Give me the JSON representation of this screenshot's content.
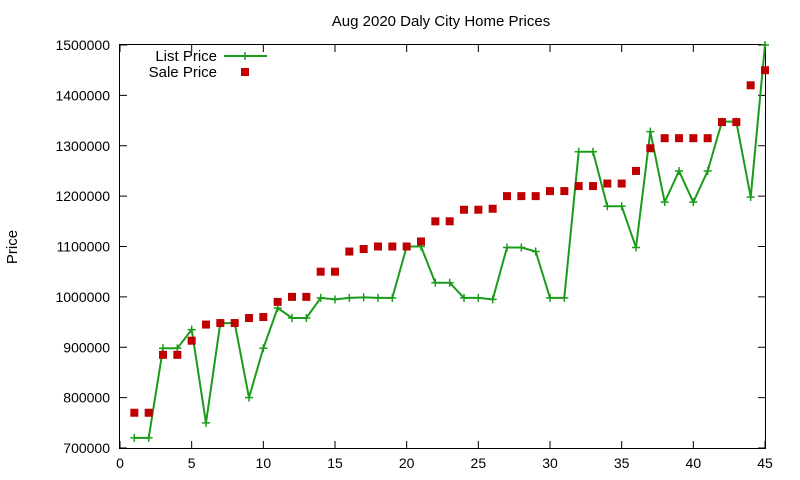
{
  "chart_data": {
    "type": "line",
    "title": "Aug 2020 Daly City Home Prices",
    "xlabel": "",
    "ylabel": "Price",
    "xlim": [
      0,
      45
    ],
    "ylim": [
      700000,
      1500000
    ],
    "xticks": [
      0,
      5,
      10,
      15,
      20,
      25,
      30,
      35,
      40,
      45
    ],
    "yticks": [
      700000,
      800000,
      900000,
      1000000,
      1100000,
      1200000,
      1300000,
      1400000,
      1500000
    ],
    "grid": false,
    "legend_position": "top-left",
    "series": [
      {
        "name": "List Price",
        "style": "linespoints",
        "marker": "plus",
        "color": "#1a9c1a",
        "x": [
          1,
          2,
          3,
          4,
          5,
          6,
          7,
          8,
          9,
          10,
          11,
          12,
          13,
          14,
          15,
          16,
          17,
          18,
          19,
          20,
          21,
          22,
          23,
          24,
          25,
          26,
          27,
          28,
          29,
          30,
          31,
          32,
          33,
          34,
          35,
          36,
          37,
          38,
          39,
          40,
          41,
          42,
          43,
          44,
          45
        ],
        "values": [
          720000,
          720000,
          898000,
          898000,
          935000,
          750000,
          948000,
          948000,
          800000,
          898000,
          978000,
          958000,
          958000,
          998000,
          995000,
          998000,
          999000,
          998000,
          998000,
          1100000,
          1100000,
          1028000,
          1028000,
          998000,
          998000,
          995000,
          1098000,
          1098000,
          1090000,
          998000,
          998000,
          1288000,
          1288000,
          1180000,
          1180000,
          1098000,
          1328000,
          1188000,
          1250000,
          1188000,
          1250000,
          1348000,
          1348000,
          1198000,
          1500000
        ]
      },
      {
        "name": "Sale Price",
        "style": "points",
        "marker": "square",
        "color": "#c00000",
        "x": [
          1,
          2,
          3,
          4,
          5,
          6,
          7,
          8,
          9,
          10,
          11,
          12,
          13,
          14,
          15,
          16,
          17,
          18,
          19,
          20,
          21,
          22,
          23,
          24,
          25,
          26,
          27,
          28,
          29,
          30,
          31,
          32,
          33,
          34,
          35,
          36,
          37,
          38,
          39,
          40,
          41,
          42,
          43,
          44,
          45
        ],
        "values": [
          770000,
          770000,
          885000,
          885000,
          913000,
          945000,
          948000,
          948000,
          958000,
          960000,
          990000,
          1000000,
          1000000,
          1050000,
          1050000,
          1090000,
          1095000,
          1100000,
          1100000,
          1100000,
          1110000,
          1150000,
          1150000,
          1173000,
          1173000,
          1175000,
          1200000,
          1200000,
          1200000,
          1210000,
          1210000,
          1220000,
          1220000,
          1225000,
          1225000,
          1250000,
          1295000,
          1315000,
          1315000,
          1315000,
          1315000,
          1347000,
          1347000,
          1420000,
          1450000
        ]
      }
    ]
  }
}
